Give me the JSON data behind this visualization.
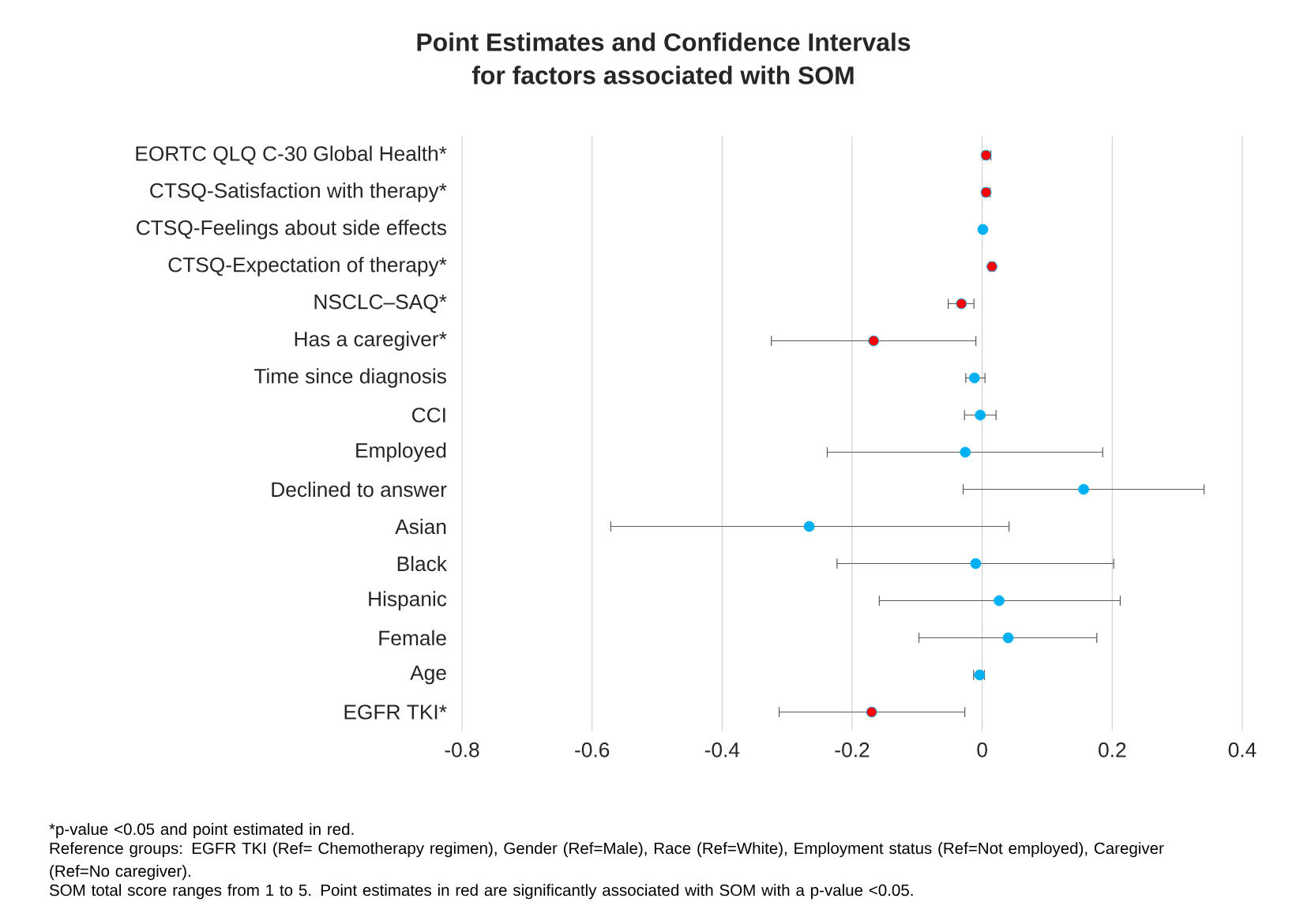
{
  "chart_data": {
    "type": "scatter",
    "orientation": "horizontal",
    "title": "Point Estimates and Confidence Intervals",
    "subtitle": "for factors associated with SOM",
    "categories": [
      "EORTC QLQ C-30 Global Health*",
      "CTSQ-Satisfaction with therapy*",
      "CTSQ-Feelings about side effects",
      "CTSQ-Expectation of therapy*",
      "NSCLC–SAQ*",
      "Has a caregiver*",
      "Time since diagnosis",
      "CCI",
      "Employed",
      "Declined to answer",
      "Asian",
      "Black",
      "Hispanic",
      "Female",
      "Age",
      "EGFR TKI*"
    ],
    "series": [
      {
        "color": "#ff0000",
        "values": [
          0.006,
          0.006,
          null,
          0.015,
          -0.032,
          -0.167,
          null,
          null,
          null,
          null,
          null,
          null,
          null,
          null,
          null,
          -0.17
        ],
        "errors": [
          [
            0.001,
            0.014
          ],
          [
            0.001,
            0.013
          ],
          null,
          [
            0.01,
            0.02
          ],
          [
            -0.053,
            -0.012
          ],
          [
            -0.325,
            -0.009
          ],
          null,
          null,
          null,
          null,
          null,
          null,
          null,
          null,
          null,
          [
            -0.313,
            -0.026
          ]
        ]
      },
      {
        "color": "#00b0f0",
        "values": [
          null,
          null,
          0.001,
          null,
          null,
          null,
          -0.012,
          -0.003,
          -0.026,
          0.156,
          -0.266,
          -0.01,
          0.026,
          0.04,
          -0.004,
          null
        ],
        "errors": [
          null,
          null,
          [
            -0.002,
            0.004
          ],
          null,
          null,
          null,
          [
            -0.026,
            0.005
          ],
          [
            -0.028,
            0.022
          ],
          [
            -0.239,
            0.186
          ],
          [
            -0.03,
            0.342
          ],
          [
            -0.572,
            0.042
          ],
          [
            -0.224,
            0.203
          ],
          [
            -0.159,
            0.213
          ],
          [
            -0.098,
            0.177
          ],
          [
            -0.014,
            0.004
          ],
          null
        ]
      }
    ],
    "xlim": [
      -0.8,
      0.4
    ],
    "xticks": [
      -0.8,
      -0.6,
      -0.4,
      -0.2,
      0,
      0.2,
      0.4
    ],
    "grid": "x",
    "marker": "circle",
    "annotations": [
      "*p-value <0.05 and point estimated in red.",
      "Reference groups: EGFR TKI (Ref= Chemotherapy regimen), Gender (Ref=Male), Race (Ref=White), Employment status (Ref=Not employed), Caregiver (Ref=No caregiver).",
      "SOM total score ranges from 1 to 5. Point estimates in red are significantly associated with SOM with a p-value <0.05."
    ]
  }
}
